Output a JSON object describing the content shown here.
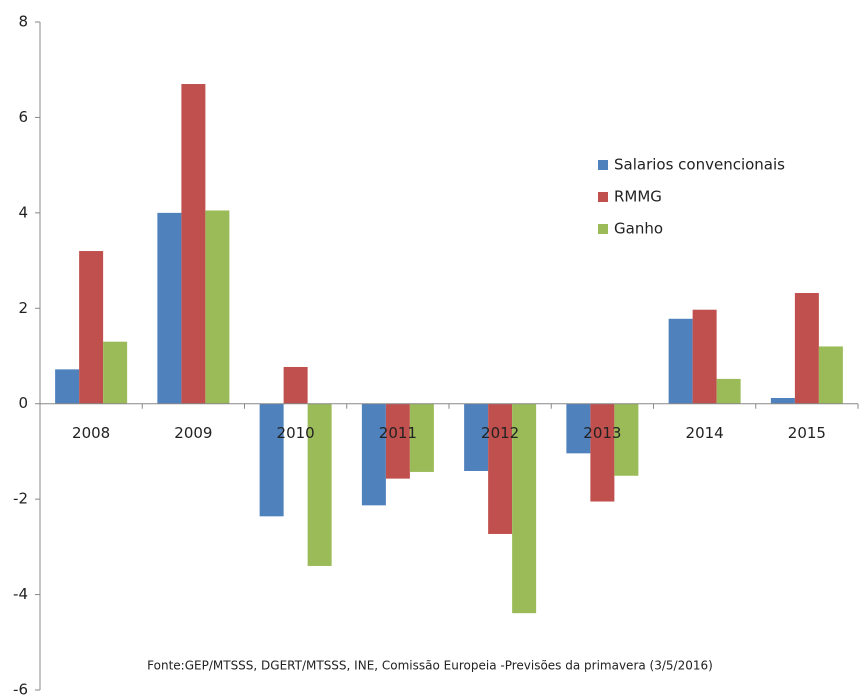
{
  "chart_data": {
    "type": "bar",
    "categories": [
      "2008",
      "2009",
      "2010",
      "2011",
      "2012",
      "2013",
      "2014",
      "2015"
    ],
    "series": [
      {
        "name": "Salarios convencionais",
        "color": "#4f81bd",
        "values": [
          0.72,
          4.0,
          -2.36,
          -2.13,
          -1.41,
          -1.04,
          1.78,
          0.12
        ]
      },
      {
        "name": "RMMG",
        "color": "#c0504d",
        "values": [
          3.2,
          6.7,
          0.77,
          -1.57,
          -2.73,
          -2.05,
          1.97,
          2.32
        ]
      },
      {
        "name": "Ganho",
        "color": "#9bbb59",
        "values": [
          1.3,
          4.05,
          -3.4,
          -1.43,
          -4.39,
          -1.51,
          0.52,
          1.2
        ]
      }
    ],
    "ylim": [
      -6,
      8
    ],
    "yticks": [
      -6,
      -4,
      -2,
      0,
      2,
      4,
      6,
      8
    ],
    "legend": "upper right",
    "annotation": "Fonte:GEP/MTSSS, DGERT/MTSSS, INE, Comissão Europeia -Previsões da primavera (3/5/2016)"
  }
}
